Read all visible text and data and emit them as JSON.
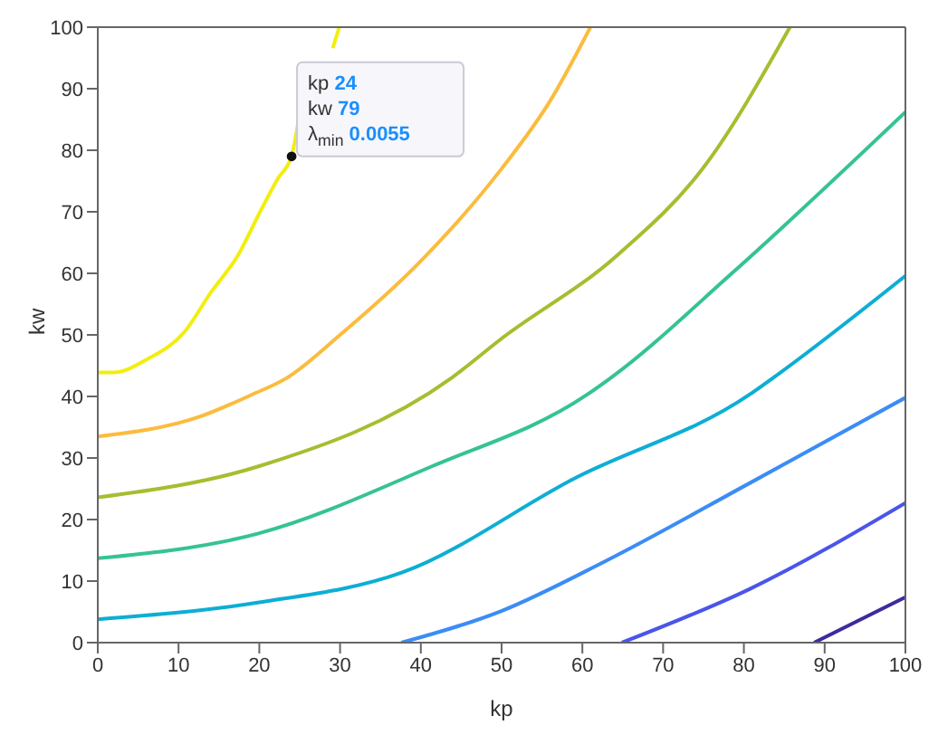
{
  "chart_data": {
    "type": "line",
    "xlabel": "kp",
    "ylabel": "kw",
    "xlim": [
      0,
      100
    ],
    "ylim": [
      0,
      100
    ],
    "xticks": [
      0,
      10,
      20,
      30,
      40,
      50,
      60,
      70,
      80,
      90,
      100
    ],
    "yticks": [
      0,
      10,
      20,
      30,
      40,
      50,
      60,
      70,
      80,
      90,
      100
    ],
    "grid": false,
    "legend": false,
    "marker": "none",
    "line_style": "solid",
    "series": [
      {
        "color": "#f2ee0f",
        "x": [
          0,
          1.9,
          6.2,
          10.8,
          14,
          17.3,
          20.1,
          22.3,
          24,
          24.8,
          27.3,
          29.1,
          29.9
        ],
        "values": [
          43.9,
          43.9,
          46.1,
          50.6,
          56.9,
          62.8,
          70,
          75.4,
          79.1,
          84.4,
          null,
          96.6,
          100
        ]
      },
      {
        "color": "#fbbc3d",
        "x": [
          0,
          12.6,
          19.1,
          23.4,
          30,
          40,
          50,
          56,
          61
        ],
        "values": [
          33.5,
          36.7,
          40.3,
          43,
          50,
          62,
          77,
          88,
          100
        ]
      },
      {
        "color": "#a5be30",
        "x": [
          0,
          19.8,
          43.8,
          49.9,
          64.2,
          75,
          85.7
        ],
        "values": [
          23.6,
          28.6,
          43,
          49.3,
          62.8,
          77.2,
          100
        ]
      },
      {
        "color": "#35c393",
        "x": [
          0,
          19.8,
          41.3,
          60.6,
          63.5,
          78.6,
          100
        ],
        "values": [
          13.7,
          17.7,
          28.6,
          40.3,
          43,
          60.1,
          86.2
        ]
      },
      {
        "color": "#0daed4",
        "x": [
          0,
          19.8,
          37.7,
          59.2,
          80.7,
          83.6,
          100
        ],
        "values": [
          3.8,
          6.5,
          11.4,
          26.8,
          40.3,
          43,
          59.6
        ]
      },
      {
        "color": "#3b8cf6",
        "x": [
          37.6,
          49.9,
          62.8,
          80.7,
          100
        ],
        "values": [
          0,
          5.1,
          13.2,
          25.9,
          39.8
        ]
      },
      {
        "color": "#4a55ea",
        "x": [
          64.9,
          80.7,
          100
        ],
        "values": [
          0,
          8.7,
          22.7
        ]
      },
      {
        "color": "#3b2c9e",
        "x": [
          88.7,
          100
        ],
        "values": [
          0,
          7.4
        ]
      },
      {
        "type": "scatter",
        "marker": "circle",
        "color": "#111111",
        "x": [
          24
        ],
        "values": [
          79
        ]
      }
    ],
    "annotations": [
      "kp 24",
      "kw 79",
      "λ$_{min}$ 0.0055"
    ]
  }
}
